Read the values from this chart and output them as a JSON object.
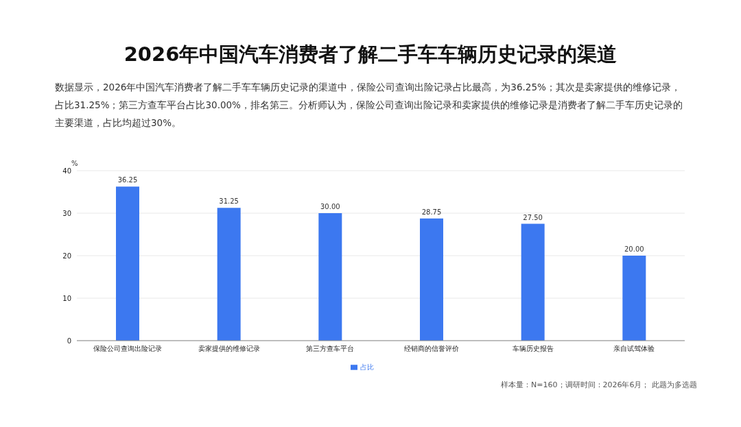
{
  "chart_data": {
    "type": "bar",
    "title": "2026年中国汽车消费者了解二手车车辆历史记录的渠道",
    "subtitle": "数据显示，2026年中国汽车消费者了解二手车车辆历史记录的渠道中，保险公司查询出险记录占比最高，为36.25%；其次是卖家提供的维修记录，占比31.25%；第三方查车平台占比30.00%，排名第三。分析师认为，保险公司查询出险记录和卖家提供的维修记录是消费者了解二手车历史记录的主要渠道，占比均超过30%。",
    "ylabel": "%",
    "categories": [
      "保险公司查询出险记录",
      "卖家提供的维修记录",
      "第三方查车平台",
      "经销商的信誉评价",
      "车辆历史报告",
      "亲自试驾体验"
    ],
    "series": [
      {
        "name": "占比",
        "color": "#3c78f0",
        "values": [
          36.25,
          31.25,
          30.0,
          28.75,
          27.5,
          20.0
        ]
      }
    ],
    "value_labels": [
      "36.25",
      "31.25",
      "30.00",
      "28.75",
      "27.50",
      "20.00"
    ],
    "ylim": [
      0,
      40
    ],
    "yticks": [
      0,
      10,
      20,
      30,
      40
    ],
    "grid": "y",
    "legend": "bottom",
    "annotations": [
      "样本量：N=160；调研时间：2026年6月； 此题为多选题"
    ]
  }
}
